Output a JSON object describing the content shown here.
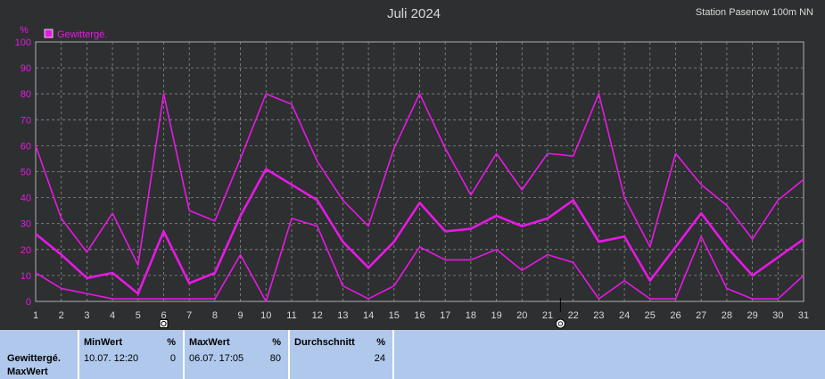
{
  "chart_data": {
    "type": "line",
    "title": "Juli 2024",
    "station": "Station Pasenow 100m NN",
    "ylabel": "%",
    "ylim": [
      0,
      100
    ],
    "yticks": [
      0,
      10,
      20,
      30,
      40,
      50,
      60,
      70,
      80,
      90,
      100
    ],
    "x": [
      1,
      2,
      3,
      4,
      5,
      6,
      7,
      8,
      9,
      10,
      11,
      12,
      13,
      14,
      15,
      16,
      17,
      18,
      19,
      20,
      21,
      22,
      23,
      24,
      25,
      26,
      27,
      28,
      29,
      30,
      31
    ],
    "legend": "Gewittergé.",
    "grid": true,
    "color": "#e619e6",
    "series": [
      {
        "role": "max",
        "values": [
          60,
          32,
          19,
          34,
          14,
          80,
          35,
          31,
          55,
          80,
          76,
          54,
          39,
          29,
          59,
          80,
          59,
          41,
          57,
          43,
          57,
          56,
          80,
          40,
          21,
          57,
          45,
          37,
          24,
          39,
          47
        ]
      },
      {
        "role": "avg",
        "values": [
          26,
          18,
          9,
          11,
          3,
          27,
          7,
          11,
          33,
          51,
          45,
          39,
          23,
          13,
          23,
          38,
          27,
          28,
          33,
          29,
          32,
          39,
          23,
          25,
          8,
          21,
          34,
          21,
          10,
          17,
          24
        ]
      },
      {
        "role": "min",
        "values": [
          11,
          5,
          3,
          1,
          1,
          1,
          1,
          1,
          18,
          0,
          32,
          29,
          6,
          1,
          6,
          21,
          16,
          16,
          20,
          12,
          18,
          15,
          1,
          8,
          1,
          1,
          25,
          5,
          1,
          1,
          10
        ]
      }
    ],
    "markers": [
      {
        "x": 6,
        "symbol": "day-marker"
      },
      {
        "x": 21.5,
        "symbol": "day-marker"
      }
    ]
  },
  "stats": {
    "label_line1": "Gewittergé.",
    "label_line2": "MaxWert",
    "min": {
      "header": "MinWert",
      "unit": "%",
      "time": "10.07.  12:20",
      "value": "0"
    },
    "max": {
      "header": "MaxWert",
      "unit": "%",
      "time": "06.07.  17:05",
      "value": "80"
    },
    "avg": {
      "header": "Durchschnitt",
      "unit": "%",
      "value": "24"
    }
  }
}
